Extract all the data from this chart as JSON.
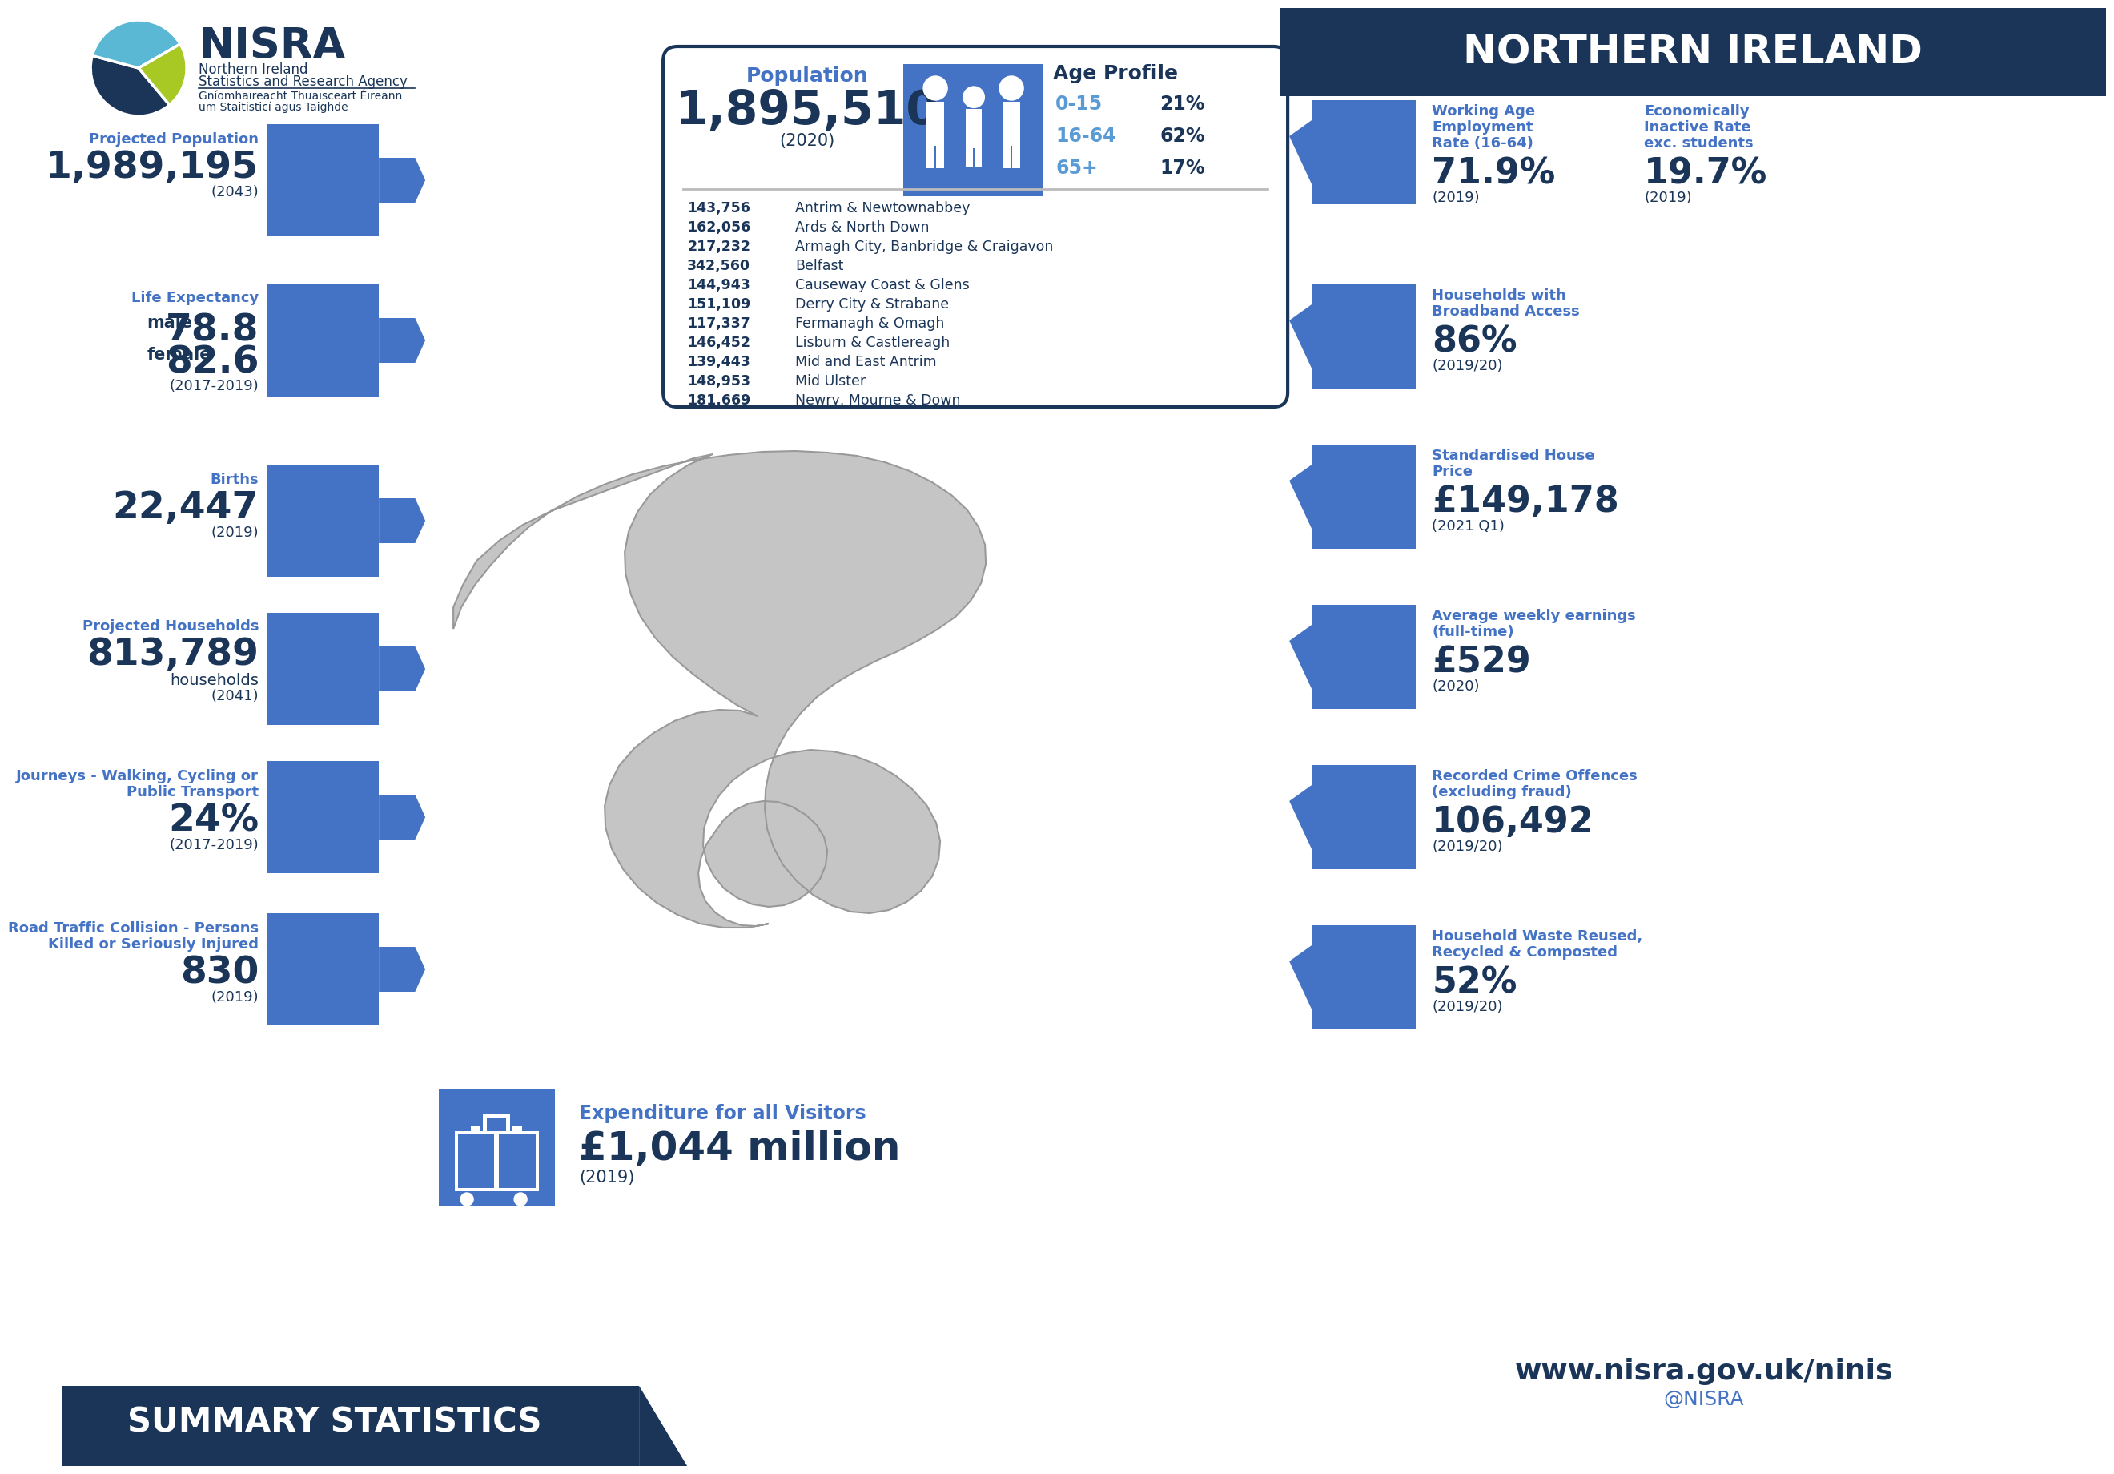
{
  "title_ni": "NORTHERN IRELAND",
  "summary_title": "SUMMARY STATISTICS",
  "bg_color": "#ffffff",
  "dark_navy": "#1a3557",
  "medium_blue": "#4472c4",
  "light_blue": "#5b9bd5",
  "icon_blue": "#4472c4",
  "arrow_blue": "#4472c4",
  "left_section": [
    {
      "label_lines": [
        "Projected Population"
      ],
      "value": "1,989,195",
      "sub": null,
      "year": "(2043)"
    },
    {
      "label_lines": [
        "Life Expectancy"
      ],
      "value_lines": [
        [
          "male",
          "78.8"
        ],
        [
          "female",
          "82.6"
        ]
      ],
      "sub": null,
      "year": "(2017-2019)"
    },
    {
      "label_lines": [
        "Births"
      ],
      "value": "22,447",
      "sub": null,
      "year": "(2019)"
    },
    {
      "label_lines": [
        "Projected Households"
      ],
      "value": "813,789",
      "sub": "households",
      "year": "(2041)"
    },
    {
      "label_lines": [
        "Journeys - Walking, Cycling or",
        "Public Transport"
      ],
      "value": "24%",
      "sub": null,
      "year": "(2017-2019)"
    },
    {
      "label_lines": [
        "Road Traffic Collision - Persons",
        "Killed or Seriously Injured"
      ],
      "value": "830",
      "sub": null,
      "year": "(2019)"
    }
  ],
  "center_box": {
    "pop_label": "Population",
    "pop_value": "1,895,510",
    "pop_year": "(2020)",
    "age_label": "Age Profile",
    "ages": [
      {
        "range": "0-15",
        "pct": "21%"
      },
      {
        "range": "16-64",
        "pct": "62%"
      },
      {
        "range": "65+",
        "pct": "17%"
      }
    ],
    "districts": [
      {
        "pop": "143,756",
        "name": "Antrim & Newtownabbey"
      },
      {
        "pop": "162,056",
        "name": "Ards & North Down"
      },
      {
        "pop": "217,232",
        "name": "Armagh City, Banbridge & Craigavon"
      },
      {
        "pop": "342,560",
        "name": "Belfast"
      },
      {
        "pop": "144,943",
        "name": "Causeway Coast & Glens"
      },
      {
        "pop": "151,109",
        "name": "Derry City & Strabane"
      },
      {
        "pop": "117,337",
        "name": "Fermanagh & Omagh"
      },
      {
        "pop": "146,452",
        "name": "Lisburn & Castlereagh"
      },
      {
        "pop": "139,443",
        "name": "Mid and East Antrim"
      },
      {
        "pop": "148,953",
        "name": "Mid Ulster"
      },
      {
        "pop": "181,669",
        "name": "Newry, Mourne & Down"
      }
    ]
  },
  "visitor_label": "Expenditure for all Visitors",
  "visitor_value": "£1,044 million",
  "visitor_year": "(2019)",
  "right_section": [
    {
      "label_lines": [
        "Working Age",
        "Employment",
        "Rate (16-64)"
      ],
      "value": "71.9%",
      "year": "(2019)",
      "label2_lines": [
        "Economically",
        "Inactive Rate",
        "exc. students"
      ],
      "value2": "19.7%",
      "year2": "(2019)"
    },
    {
      "label_lines": [
        "Households with",
        "Broadband Access"
      ],
      "value": "86%",
      "year": "(2019/20)"
    },
    {
      "label_lines": [
        "Standardised House",
        "Price"
      ],
      "value": "£149,178",
      "year": "(2021 Q1)"
    },
    {
      "label_lines": [
        "Average weekly earnings",
        "(full-time)"
      ],
      "value": "£529",
      "year": "(2020)"
    },
    {
      "label_lines": [
        "Recorded Crime Offences",
        "(excluding fraud)"
      ],
      "value": "106,492",
      "year": "(2019/20)"
    },
    {
      "label_lines": [
        "Household Waste Reused,",
        "Recycled & Composted"
      ],
      "value": "52%",
      "year": "(2019/20)"
    }
  ],
  "website": "www.nisra.gov.uk/ninis",
  "twitter": "@NISRA",
  "nisra_text1": "Northern Ireland",
  "nisra_text2": "Statistics and Research Agency",
  "nisra_text3": "Gníomhaireacht Thuaisceart Éireann",
  "nisra_text4": "um Staitisticí agus Taighde"
}
